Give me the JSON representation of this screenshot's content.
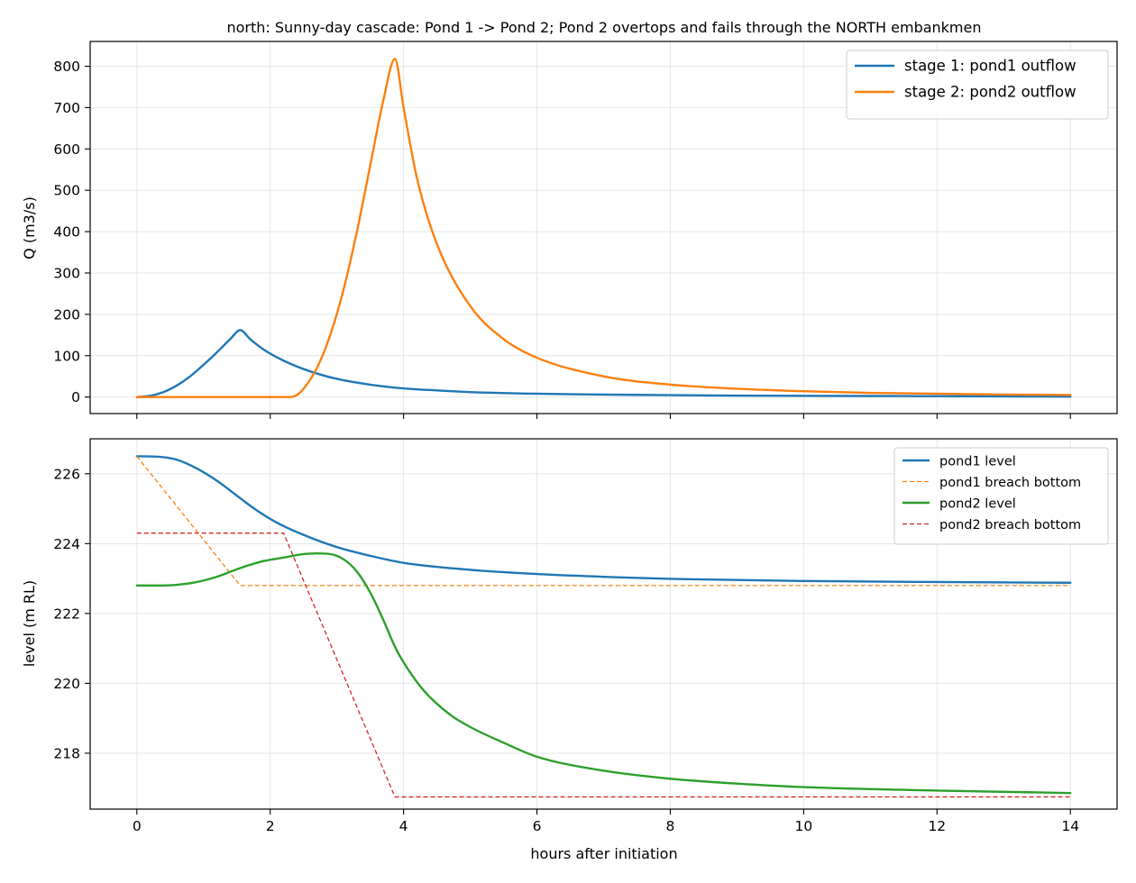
{
  "chart_data": [
    {
      "type": "line",
      "title": "north: Sunny-day cascade: Pond 1 -> Pond 2; Pond 2 overtops and fails through the NORTH embankmen",
      "xlabel": "",
      "ylabel": "Q (m3/s)",
      "xlim": [
        -0.7,
        14.7
      ],
      "ylim": [
        -40,
        860
      ],
      "xticks": [
        0,
        2,
        4,
        6,
        8,
        10,
        12,
        14
      ],
      "yticks": [
        0,
        100,
        200,
        300,
        400,
        500,
        600,
        700,
        800
      ],
      "grid": true,
      "legend_position": "top-right",
      "series": [
        {
          "name": "stage 1: pond1 outflow",
          "color": "#1f77b4",
          "style": "solid",
          "x": [
            0,
            0.2,
            0.4,
            0.6,
            0.8,
            1.0,
            1.2,
            1.4,
            1.55,
            1.7,
            1.9,
            2.2,
            2.6,
            3.0,
            3.5,
            4.0,
            4.5,
            5.0,
            6.0,
            7.0,
            8.0,
            9.0,
            10.0,
            11.0,
            12.0,
            13.0,
            14.0
          ],
          "y": [
            0,
            3,
            12,
            28,
            50,
            78,
            108,
            140,
            162,
            140,
            115,
            88,
            62,
            44,
            30,
            21,
            16,
            12,
            8,
            6,
            4.5,
            3.5,
            3,
            2.5,
            2,
            1.5,
            1
          ]
        },
        {
          "name": "stage 2: pond2 outflow",
          "color": "#ff7f0e",
          "style": "solid",
          "x": [
            0,
            2.3,
            2.4,
            2.5,
            2.7,
            2.9,
            3.1,
            3.3,
            3.5,
            3.7,
            3.87,
            4.0,
            4.2,
            4.5,
            5.0,
            5.5,
            6.0,
            7.0,
            8.0,
            9.0,
            10.0,
            11.0,
            12.0,
            13.0,
            14.0
          ],
          "y": [
            0,
            0,
            5,
            20,
            70,
            150,
            260,
            400,
            560,
            720,
            818,
            700,
            530,
            370,
            220,
            140,
            95,
            50,
            30,
            20,
            14,
            10,
            8,
            6,
            5
          ]
        }
      ]
    },
    {
      "type": "line",
      "title": "",
      "xlabel": "hours after initiation",
      "ylabel": "level (m RL)",
      "xlim": [
        -0.7,
        14.7
      ],
      "ylim": [
        216.4,
        227.0
      ],
      "xticks": [
        0,
        2,
        4,
        6,
        8,
        10,
        12,
        14
      ],
      "yticks": [
        218,
        220,
        222,
        224,
        226
      ],
      "grid": true,
      "legend_position": "top-right",
      "series": [
        {
          "name": "pond1 level",
          "color": "#1f77b4",
          "style": "solid",
          "x": [
            0,
            0.3,
            0.6,
            0.9,
            1.2,
            1.55,
            1.8,
            2.1,
            2.5,
            3.0,
            3.5,
            4.0,
            5.0,
            6.0,
            7.0,
            8.0,
            10.0,
            12.0,
            14.0
          ],
          "y": [
            226.5,
            226.49,
            226.4,
            226.15,
            225.8,
            225.3,
            224.95,
            224.6,
            224.25,
            223.9,
            223.65,
            223.45,
            223.25,
            223.13,
            223.05,
            222.99,
            222.93,
            222.9,
            222.88
          ]
        },
        {
          "name": "pond1 breach bottom",
          "color": "#ff7f0e",
          "style": "dashed",
          "x": [
            0,
            1.55,
            14.0
          ],
          "y": [
            226.5,
            222.8,
            222.8
          ]
        },
        {
          "name": "pond2 level",
          "color": "#2ca02c",
          "style": "solid",
          "x": [
            0,
            0.3,
            0.6,
            0.9,
            1.2,
            1.55,
            1.9,
            2.2,
            2.5,
            2.7,
            2.9,
            3.1,
            3.3,
            3.5,
            3.7,
            3.87,
            4.0,
            4.3,
            4.7,
            5.0,
            5.5,
            6.0,
            7.0,
            8.0,
            9.0,
            10.0,
            12.0,
            14.0
          ],
          "y": [
            222.8,
            222.8,
            222.82,
            222.9,
            223.05,
            223.3,
            223.5,
            223.6,
            223.7,
            223.72,
            223.7,
            223.55,
            223.2,
            222.6,
            221.8,
            221.05,
            220.6,
            219.8,
            219.1,
            218.75,
            218.3,
            217.9,
            217.5,
            217.27,
            217.13,
            217.03,
            216.93,
            216.86
          ]
        },
        {
          "name": "pond2 breach bottom",
          "color": "#d62728",
          "style": "dashed",
          "x": [
            0,
            2.2,
            3.87,
            14.0
          ],
          "y": [
            224.3,
            224.3,
            216.75,
            216.75
          ]
        }
      ]
    }
  ]
}
